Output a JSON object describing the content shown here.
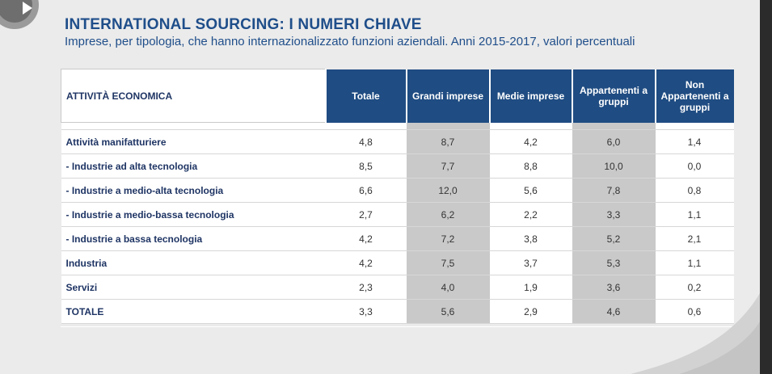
{
  "title": "INTERNATIONAL SOURCING: I NUMERI CHIAVE",
  "subtitle": "Imprese, per tipologia, che hanno internazionalizzato funzioni aziendali.  Anni 2015-2017, valori percentuali",
  "colors": {
    "title": "#1f4e8a",
    "header_bg": "#1f4c82",
    "shaded_col": "#c9c9c9"
  },
  "table": {
    "headers": {
      "c0": "ATTIVITÀ ECONOMICA",
      "c1": "Totale",
      "c2": "Grandi imprese",
      "c3": "Medie imprese",
      "c4": "Appartenenti a gruppi",
      "c5": "Non Appartenenti a gruppi"
    },
    "rows": [
      {
        "label": "Attività manifatturiere",
        "v1": "4,8",
        "v2": "8,7",
        "v3": "4,2",
        "v4": "6,0",
        "v5": "1,4"
      },
      {
        "label": "- Industrie ad alta tecnologia",
        "v1": "8,5",
        "v2": "7,7",
        "v3": "8,8",
        "v4": "10,0",
        "v5": "0,0"
      },
      {
        "label": "- Industrie a medio-alta tecnologia",
        "v1": "6,6",
        "v2": "12,0",
        "v3": "5,6",
        "v4": "7,8",
        "v5": "0,8"
      },
      {
        "label": "- Industrie a medio-bassa tecnologia",
        "v1": "2,7",
        "v2": "6,2",
        "v3": "2,2",
        "v4": "3,3",
        "v5": "1,1"
      },
      {
        "label": "- Industrie a bassa tecnologia",
        "v1": "4,2",
        "v2": "7,2",
        "v3": "3,8",
        "v4": "5,2",
        "v5": "2,1"
      },
      {
        "label": "Industria",
        "v1": "4,2",
        "v2": "7,5",
        "v3": "3,7",
        "v4": "5,3",
        "v5": "1,1"
      },
      {
        "label": "Servizi",
        "v1": "2,3",
        "v2": "4,0",
        "v3": "1,9",
        "v4": "3,6",
        "v5": "0,2"
      },
      {
        "label": "TOTALE",
        "v1": "3,3",
        "v2": "5,6",
        "v3": "2,9",
        "v4": "4,6",
        "v5": "0,6"
      }
    ]
  }
}
